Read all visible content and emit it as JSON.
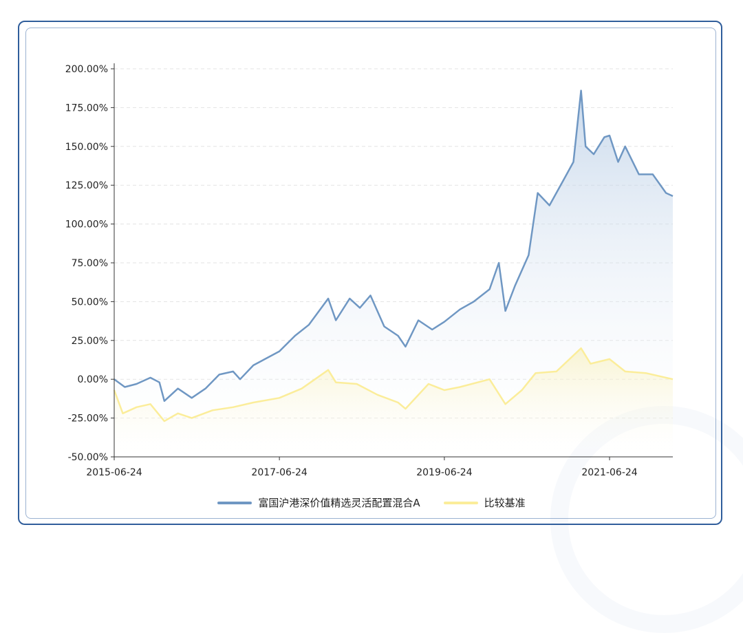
{
  "colors": {
    "frame": "#2f5d9b",
    "fund_line": "#6f97c3",
    "benchmark_line": "#fbed9a",
    "grid": "#e3e3e3"
  },
  "chart_data": {
    "type": "area",
    "title": "",
    "xlabel": "",
    "ylabel": "",
    "x_tick_labels": [
      "2015-06-24",
      "2017-06-24",
      "2019-06-24",
      "2021-06-24"
    ],
    "y_tick_labels": [
      "200.00%",
      "175.00%",
      "150.00%",
      "125.00%",
      "100.00%",
      "75.00%",
      "50.00%",
      "25.00%",
      "0.00%",
      "-25.00%",
      "-50.00%"
    ],
    "ylim": [
      -50,
      200
    ],
    "xlim": [
      "2015-06-24",
      "2022-03-31"
    ],
    "grid": "horizontal dashed",
    "legend_position": "bottom-center",
    "series": [
      {
        "name": "富国沪港深价值精选灵活配置混合A",
        "unit": "%",
        "points": [
          [
            "2015-06-24",
            0
          ],
          [
            "2015-08-10",
            -5
          ],
          [
            "2015-10-01",
            -3
          ],
          [
            "2015-12-01",
            1
          ],
          [
            "2016-01-10",
            -2
          ],
          [
            "2016-02-01",
            -14
          ],
          [
            "2016-04-01",
            -6
          ],
          [
            "2016-06-01",
            -12
          ],
          [
            "2016-08-01",
            -6
          ],
          [
            "2016-10-01",
            3
          ],
          [
            "2016-12-01",
            5
          ],
          [
            "2017-01-01",
            0
          ],
          [
            "2017-03-01",
            9
          ],
          [
            "2017-06-24",
            18
          ],
          [
            "2017-09-01",
            28
          ],
          [
            "2017-11-01",
            35
          ],
          [
            "2018-01-26",
            52
          ],
          [
            "2018-03-01",
            38
          ],
          [
            "2018-05-01",
            52
          ],
          [
            "2018-06-15",
            46
          ],
          [
            "2018-08-01",
            54
          ],
          [
            "2018-10-01",
            34
          ],
          [
            "2018-12-01",
            28
          ],
          [
            "2019-01-03",
            21
          ],
          [
            "2019-03-01",
            38
          ],
          [
            "2019-05-01",
            32
          ],
          [
            "2019-06-24",
            37
          ],
          [
            "2019-09-01",
            45
          ],
          [
            "2019-11-01",
            50
          ],
          [
            "2020-01-10",
            58
          ],
          [
            "2020-02-20",
            75
          ],
          [
            "2020-03-20",
            44
          ],
          [
            "2020-05-01",
            60
          ],
          [
            "2020-07-01",
            80
          ],
          [
            "2020-08-10",
            120
          ],
          [
            "2020-10-01",
            112
          ],
          [
            "2020-12-01",
            128
          ],
          [
            "2021-01-15",
            140
          ],
          [
            "2021-02-18",
            186
          ],
          [
            "2021-03-10",
            150
          ],
          [
            "2021-04-15",
            145
          ],
          [
            "2021-06-01",
            156
          ],
          [
            "2021-06-24",
            157
          ],
          [
            "2021-08-01",
            140
          ],
          [
            "2021-09-01",
            150
          ],
          [
            "2021-11-01",
            132
          ],
          [
            "2022-01-01",
            132
          ],
          [
            "2022-03-01",
            120
          ],
          [
            "2022-03-31",
            118
          ]
        ]
      },
      {
        "name": "比较基准",
        "unit": "%",
        "points": [
          [
            "2015-06-24",
            -7
          ],
          [
            "2015-08-01",
            -22
          ],
          [
            "2015-10-01",
            -18
          ],
          [
            "2015-12-01",
            -16
          ],
          [
            "2016-02-01",
            -27
          ],
          [
            "2016-04-01",
            -22
          ],
          [
            "2016-06-01",
            -25
          ],
          [
            "2016-09-01",
            -20
          ],
          [
            "2016-12-01",
            -18
          ],
          [
            "2017-03-01",
            -15
          ],
          [
            "2017-06-24",
            -12
          ],
          [
            "2017-10-01",
            -6
          ],
          [
            "2018-01-26",
            6
          ],
          [
            "2018-03-01",
            -2
          ],
          [
            "2018-06-01",
            -3
          ],
          [
            "2018-09-01",
            -10
          ],
          [
            "2018-12-01",
            -15
          ],
          [
            "2019-01-03",
            -19
          ],
          [
            "2019-04-15",
            -3
          ],
          [
            "2019-06-24",
            -7
          ],
          [
            "2019-09-01",
            -5
          ],
          [
            "2020-01-10",
            0
          ],
          [
            "2020-03-20",
            -16
          ],
          [
            "2020-06-01",
            -7
          ],
          [
            "2020-08-01",
            4
          ],
          [
            "2020-11-01",
            5
          ],
          [
            "2021-02-18",
            20
          ],
          [
            "2021-04-01",
            10
          ],
          [
            "2021-06-24",
            13
          ],
          [
            "2021-09-01",
            5
          ],
          [
            "2021-12-01",
            4
          ],
          [
            "2022-03-31",
            0
          ]
        ]
      }
    ]
  },
  "legend": {
    "fund_label": "富国沪港深价值精选灵活配置混合A",
    "benchmark_label": "比较基准"
  }
}
